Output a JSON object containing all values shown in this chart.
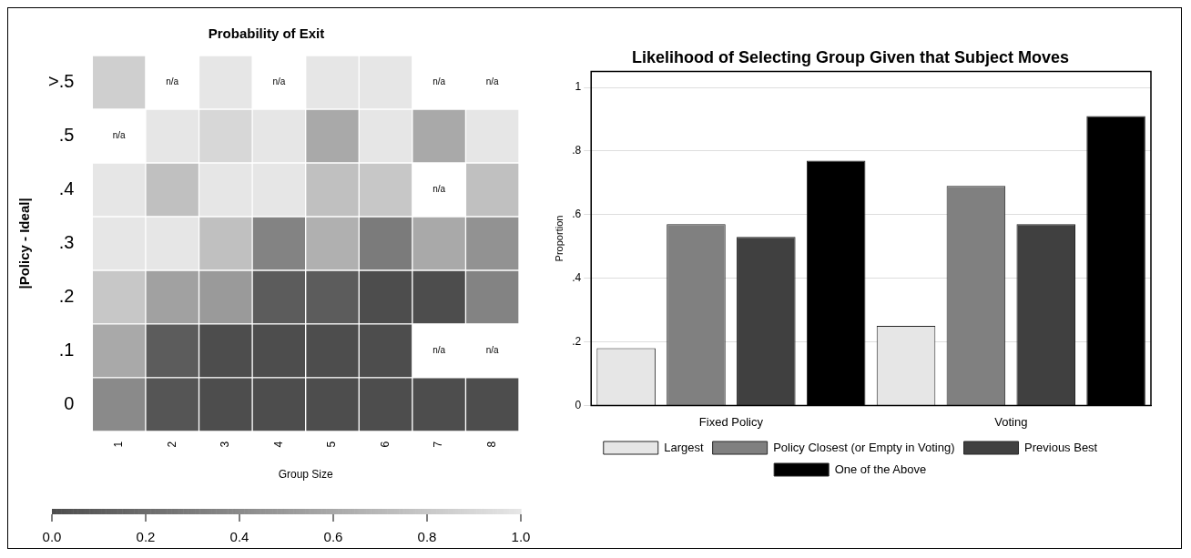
{
  "chart_data": [
    {
      "type": "heatmap",
      "title": "Probability of Exit",
      "xlabel": "Group Size",
      "ylabel": "|Policy - Ideal|",
      "categories": [
        "1",
        "2",
        "3",
        "4",
        "5",
        "6",
        "7",
        "8"
      ],
      "y_categories": [
        ">.5",
        ".5",
        ".4",
        ".3",
        ".2",
        ".1",
        "0"
      ],
      "cells": [
        [
          0.85,
          null,
          1.0,
          null,
          1.0,
          1.0,
          null,
          null
        ],
        [
          null,
          1.0,
          0.9,
          1.0,
          0.6,
          1.0,
          0.6,
          1.0
        ],
        [
          1.0,
          0.75,
          1.0,
          1.0,
          0.75,
          0.8,
          null,
          0.75
        ],
        [
          1.0,
          1.0,
          0.75,
          0.35,
          0.65,
          0.3,
          0.6,
          0.45
        ],
        [
          0.8,
          0.55,
          0.5,
          0.1,
          0.1,
          0.0,
          0.0,
          0.35
        ],
        [
          0.6,
          0.1,
          0.0,
          0.0,
          0.0,
          0.0,
          null,
          null
        ],
        [
          0.4,
          0.05,
          0.0,
          0.0,
          0.0,
          0.0,
          0.0,
          0.0
        ]
      ],
      "cell_labels": [
        [
          null,
          "n/a",
          null,
          "n/a",
          null,
          null,
          "n/a",
          "n/a"
        ],
        [
          "n/a",
          null,
          null,
          null,
          null,
          null,
          null,
          null
        ],
        [
          null,
          null,
          null,
          null,
          null,
          null,
          "n/a",
          null
        ],
        [
          null,
          null,
          null,
          null,
          null,
          null,
          null,
          null
        ],
        [
          null,
          null,
          null,
          null,
          null,
          null,
          null,
          null
        ],
        [
          null,
          null,
          null,
          null,
          null,
          null,
          "n/a",
          "n/a"
        ],
        [
          null,
          null,
          null,
          null,
          null,
          null,
          null,
          null
        ]
      ],
      "clim": [
        0,
        1
      ],
      "cticks": [
        {
          "value": 0,
          "label": "0.0"
        },
        0.2,
        0.4,
        0.6,
        0.8,
        {
          "value": 1,
          "label": "1.0"
        }
      ]
    },
    {
      "type": "bar",
      "title": "Likelihood of Selecting Group Given that Subject Moves",
      "ylabel": "Proportion",
      "categories": [
        "Fixed Policy",
        "Voting"
      ],
      "series": [
        {
          "name": "Largest",
          "color": "#e6e6e6",
          "values": [
            0.18,
            0.25
          ]
        },
        {
          "name": "Policy Closest (or Empty in Voting)",
          "color": "#808080",
          "values": [
            0.57,
            0.69
          ]
        },
        {
          "name": "Previous Best",
          "color": "#404040",
          "values": [
            0.53,
            0.57
          ]
        },
        {
          "name": "One of the Above",
          "color": "#000000",
          "values": [
            0.77,
            0.91
          ]
        }
      ],
      "ylim": [
        0,
        1.05
      ],
      "yticks": [
        0,
        {
          "value": 0.2,
          "label": ".2"
        },
        {
          "value": 0.4,
          "label": ".4"
        },
        {
          "value": 0.6,
          "label": ".6"
        },
        {
          "value": 0.8,
          "label": ".8"
        },
        1
      ],
      "grid": "y",
      "legend": "bottom"
    }
  ]
}
